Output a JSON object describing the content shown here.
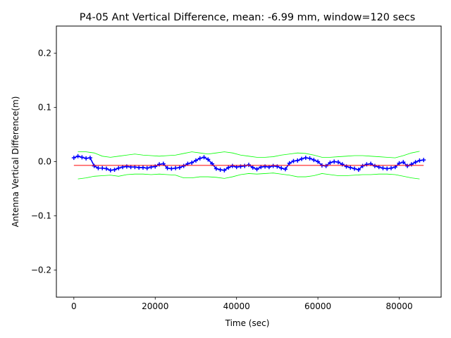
{
  "chart_data": {
    "type": "line",
    "title": "P4-05 Ant Vertical Difference, mean: -6.99 mm, window=120 secs",
    "xlabel": "Time (sec)",
    "ylabel": "Antenna Vertical Difference(m)",
    "xlim": [
      -4300,
      90300
    ],
    "ylim": [
      -0.25,
      0.25
    ],
    "xticks": [
      0,
      20000,
      40000,
      60000,
      80000
    ],
    "xtick_labels": [
      "0",
      "20000",
      "40000",
      "60000",
      "80000"
    ],
    "yticks": [
      -0.2,
      -0.1,
      0.0,
      0.1,
      0.2
    ],
    "ytick_labels": [
      "−0.2",
      "−0.1",
      "0.0",
      "0.1",
      "0.2"
    ],
    "grid": false,
    "colors": {
      "data": "#0000ff",
      "mean": "#ff0000",
      "envelope": "#00ff00"
    },
    "series": [
      {
        "marker": "+",
        "x": [
          0,
          1000,
          2000,
          3000,
          4000,
          5000,
          6000,
          7000,
          8000,
          9000,
          10000,
          11000,
          12000,
          13000,
          14000,
          15000,
          16000,
          17000,
          18000,
          19000,
          20000,
          21000,
          22000,
          23000,
          24000,
          25000,
          26000,
          27000,
          28000,
          29000,
          30000,
          31000,
          32000,
          33000,
          34000,
          35000,
          36000,
          37000,
          38000,
          39000,
          40000,
          41000,
          42000,
          43000,
          44000,
          45000,
          46000,
          47000,
          48000,
          49000,
          50000,
          51000,
          52000,
          53000,
          54000,
          55000,
          56000,
          57000,
          58000,
          59000,
          60000,
          61000,
          62000,
          63000,
          64000,
          65000,
          66000,
          67000,
          68000,
          69000,
          70000,
          71000,
          72000,
          73000,
          74000,
          75000,
          76000,
          77000,
          78000,
          79000,
          80000,
          81000,
          82000,
          83000,
          84000,
          85000,
          86000
        ],
        "values": [
          0.007,
          0.01,
          0.008,
          0.006,
          0.007,
          -0.008,
          -0.012,
          -0.012,
          -0.013,
          -0.016,
          -0.015,
          -0.012,
          -0.01,
          -0.009,
          -0.01,
          -0.01,
          -0.011,
          -0.011,
          -0.012,
          -0.01,
          -0.009,
          -0.005,
          -0.004,
          -0.012,
          -0.013,
          -0.012,
          -0.011,
          -0.008,
          -0.004,
          -0.002,
          0.002,
          0.006,
          0.008,
          0.004,
          -0.004,
          -0.013,
          -0.015,
          -0.016,
          -0.011,
          -0.008,
          -0.01,
          -0.009,
          -0.008,
          -0.006,
          -0.011,
          -0.014,
          -0.01,
          -0.009,
          -0.01,
          -0.008,
          -0.009,
          -0.012,
          -0.014,
          -0.003,
          0.001,
          0.002,
          0.005,
          0.007,
          0.006,
          0.003,
          0.0,
          -0.007,
          -0.008,
          -0.002,
          0.0,
          -0.001,
          -0.005,
          -0.009,
          -0.011,
          -0.013,
          -0.015,
          -0.008,
          -0.005,
          -0.004,
          -0.008,
          -0.01,
          -0.012,
          -0.013,
          -0.012,
          -0.01,
          -0.003,
          -0.001,
          -0.008,
          -0.005,
          -0.001,
          0.002,
          0.003
        ]
      },
      {
        "x": [
          0,
          86000
        ],
        "values": [
          -0.00699,
          -0.00699
        ]
      },
      {
        "x": [
          1000,
          3000,
          5000,
          7000,
          9000,
          11000,
          13000,
          15000,
          17000,
          19000,
          21000,
          23000,
          25000,
          27000,
          29000,
          31000,
          33000,
          35000,
          37000,
          39000,
          41000,
          43000,
          45000,
          47000,
          49000,
          51000,
          53000,
          55000,
          57000,
          59000,
          61000,
          63000,
          65000,
          67000,
          69000,
          71000,
          73000,
          75000,
          77000,
          79000,
          81000,
          83000,
          85000
        ],
        "values": [
          0.018,
          0.018,
          0.016,
          0.01,
          0.008,
          0.01,
          0.012,
          0.014,
          0.012,
          0.011,
          0.01,
          0.011,
          0.012,
          0.015,
          0.018,
          0.016,
          0.014,
          0.016,
          0.018,
          0.016,
          0.012,
          0.01,
          0.008,
          0.008,
          0.009,
          0.012,
          0.014,
          0.016,
          0.015,
          0.012,
          0.008,
          0.008,
          0.009,
          0.01,
          0.011,
          0.011,
          0.01,
          0.009,
          0.008,
          0.007,
          0.011,
          0.016,
          0.019
        ]
      },
      {
        "x": [
          1000,
          3000,
          5000,
          7000,
          9000,
          11000,
          13000,
          15000,
          17000,
          19000,
          21000,
          23000,
          25000,
          27000,
          29000,
          31000,
          33000,
          35000,
          37000,
          39000,
          41000,
          43000,
          45000,
          47000,
          49000,
          51000,
          53000,
          55000,
          57000,
          59000,
          61000,
          63000,
          65000,
          67000,
          69000,
          71000,
          73000,
          75000,
          77000,
          79000,
          81000,
          83000,
          85000
        ],
        "values": [
          -0.032,
          -0.03,
          -0.027,
          -0.026,
          -0.025,
          -0.027,
          -0.024,
          -0.023,
          -0.023,
          -0.024,
          -0.023,
          -0.024,
          -0.025,
          -0.03,
          -0.03,
          -0.028,
          -0.028,
          -0.029,
          -0.031,
          -0.028,
          -0.024,
          -0.022,
          -0.023,
          -0.022,
          -0.021,
          -0.023,
          -0.025,
          -0.028,
          -0.028,
          -0.026,
          -0.022,
          -0.024,
          -0.026,
          -0.026,
          -0.025,
          -0.024,
          -0.024,
          -0.023,
          -0.023,
          -0.024,
          -0.027,
          -0.03,
          -0.032
        ]
      }
    ]
  }
}
